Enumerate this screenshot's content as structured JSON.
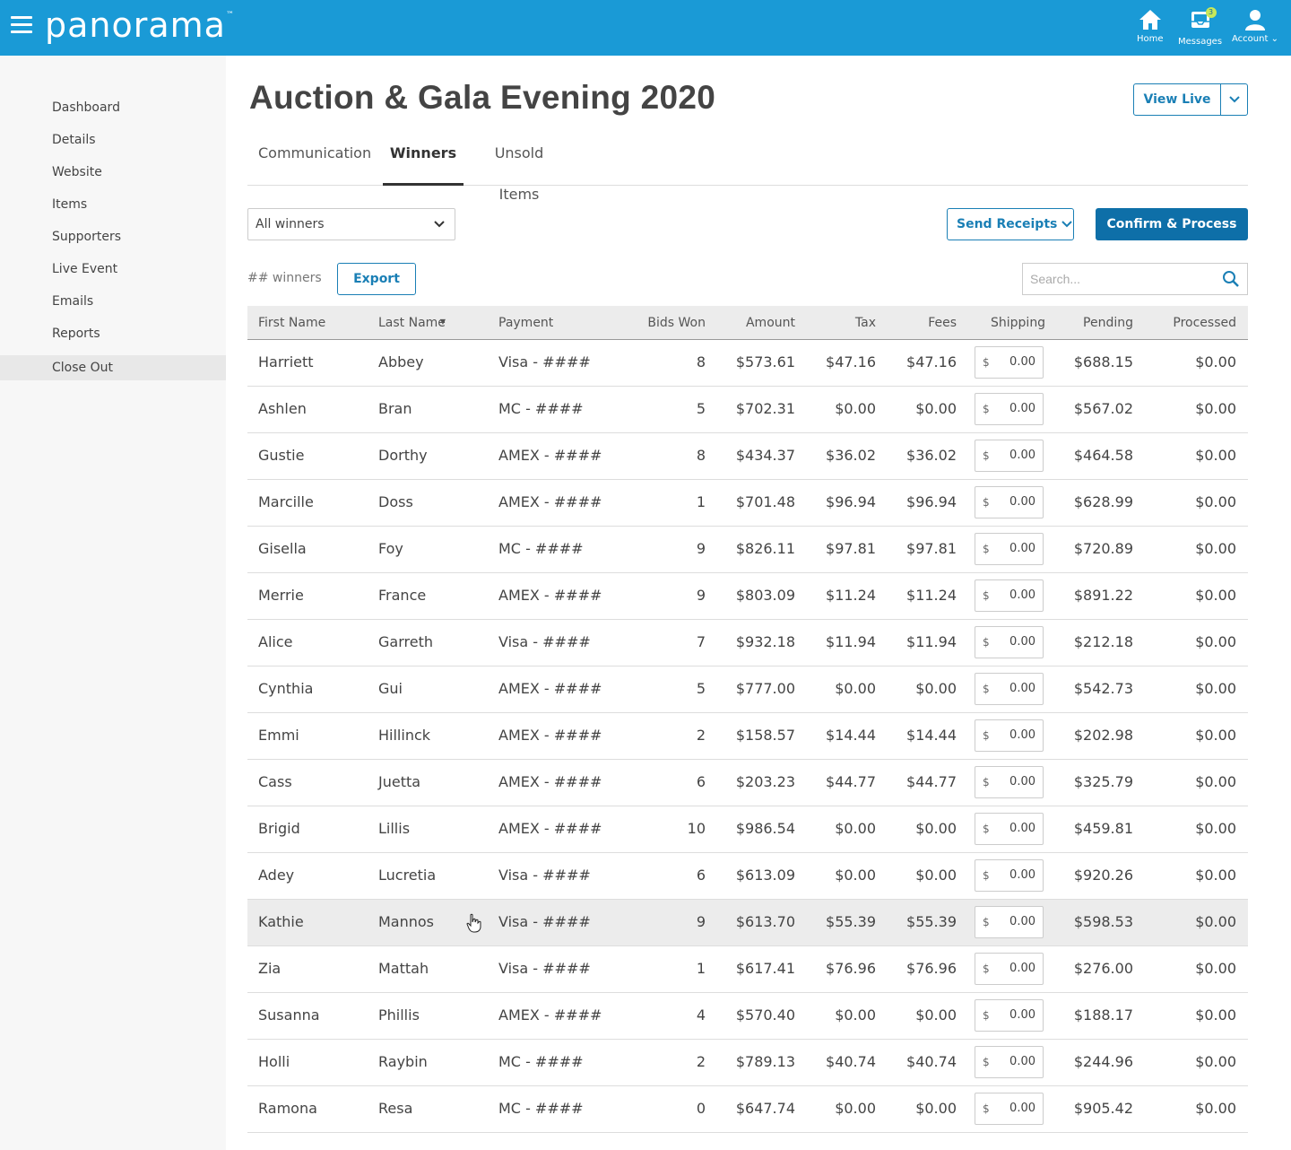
{
  "brand": {
    "logo_text": "panorama",
    "tm": "™"
  },
  "topnav": {
    "home": "Home",
    "messages": "Messages",
    "messages_badge": "3",
    "account": "Account"
  },
  "sidebar": {
    "items": [
      "Dashboard",
      "Details",
      "Website",
      "Items",
      "Supporters",
      "Live Event",
      "Emails",
      "Reports",
      "Close Out"
    ],
    "active": "Close Out"
  },
  "page": {
    "title": "Auction & Gala Evening 2020",
    "view_live": "View Live"
  },
  "tabs": [
    {
      "label": "Communication"
    },
    {
      "label": "Winners",
      "active": true
    },
    {
      "label": "Unsold Items"
    }
  ],
  "filter": {
    "selected": "All winners"
  },
  "buttons": {
    "send_receipts": "Send Receipts",
    "confirm_process": "Confirm & Process",
    "export": "Export"
  },
  "winners_count": "## winners",
  "search": {
    "placeholder": "Search..."
  },
  "table": {
    "headers": [
      "First Name",
      "Last Name",
      "Payment",
      "Bids Won",
      "Amount",
      "Tax",
      "Fees",
      "Shipping",
      "Pending",
      "Processed"
    ],
    "shipping_currency": "$",
    "rows": [
      [
        "Harriett",
        "Abbey",
        "Visa - ####",
        "8",
        "$573.61",
        "$47.16",
        "$47.16",
        "0.00",
        "$688.15",
        "$0.00"
      ],
      [
        "Ashlen",
        "Bran",
        "MC - ####",
        "5",
        "$702.31",
        "$0.00",
        "$0.00",
        "0.00",
        "$567.02",
        "$0.00"
      ],
      [
        "Gustie",
        "Dorthy",
        "AMEX - ####",
        "8",
        "$434.37",
        "$36.02",
        "$36.02",
        "0.00",
        "$464.58",
        "$0.00"
      ],
      [
        "Marcille",
        "Doss",
        "AMEX - ####",
        "1",
        "$701.48",
        "$96.94",
        "$96.94",
        "0.00",
        "$628.99",
        "$0.00"
      ],
      [
        "Gisella",
        "Foy",
        "MC - ####",
        "9",
        "$826.11",
        "$97.81",
        "$97.81",
        "0.00",
        "$720.89",
        "$0.00"
      ],
      [
        "Merrie",
        "France",
        "AMEX - ####",
        "9",
        "$803.09",
        "$11.24",
        "$11.24",
        "0.00",
        "$891.22",
        "$0.00"
      ],
      [
        "Alice",
        "Garreth",
        "Visa - ####",
        "7",
        "$932.18",
        "$11.94",
        "$11.94",
        "0.00",
        "$212.18",
        "$0.00"
      ],
      [
        "Cynthia",
        "Gui",
        "AMEX - ####",
        "5",
        "$777.00",
        "$0.00",
        "$0.00",
        "0.00",
        "$542.73",
        "$0.00"
      ],
      [
        "Emmi",
        "Hillinck",
        "AMEX - ####",
        "2",
        "$158.57",
        "$14.44",
        "$14.44",
        "0.00",
        "$202.98",
        "$0.00"
      ],
      [
        "Cass",
        "Juetta",
        "AMEX - ####",
        "6",
        "$203.23",
        "$44.77",
        "$44.77",
        "0.00",
        "$325.79",
        "$0.00"
      ],
      [
        "Brigid",
        "Lillis",
        "AMEX - ####",
        "10",
        "$986.54",
        "$0.00",
        "$0.00",
        "0.00",
        "$459.81",
        "$0.00"
      ],
      [
        "Adey",
        "Lucretia",
        "Visa - ####",
        "6",
        "$613.09",
        "$0.00",
        "$0.00",
        "0.00",
        "$920.26",
        "$0.00"
      ],
      [
        "Kathie",
        "Mannos",
        "Visa - ####",
        "9",
        "$613.70",
        "$55.39",
        "$55.39",
        "0.00",
        "$598.53",
        "$0.00"
      ],
      [
        "Zia",
        "Mattah",
        "Visa - ####",
        "1",
        "$617.41",
        "$76.96",
        "$76.96",
        "0.00",
        "$276.00",
        "$0.00"
      ],
      [
        "Susanna",
        "Phillis",
        "AMEX - ####",
        "4",
        "$570.40",
        "$0.00",
        "$0.00",
        "0.00",
        "$188.17",
        "$0.00"
      ],
      [
        "Holli",
        "Raybin",
        "MC - ####",
        "2",
        "$789.13",
        "$40.74",
        "$40.74",
        "0.00",
        "$244.96",
        "$0.00"
      ],
      [
        "Ramona",
        "Resa",
        "MC - ####",
        "0",
        "$647.74",
        "$0.00",
        "$0.00",
        "0.00",
        "$905.42",
        "$0.00"
      ]
    ]
  },
  "colors": {
    "header_bg": "#1a9ad6",
    "accent": "#1a7fb5",
    "primary_button": "#0e6fa8"
  }
}
